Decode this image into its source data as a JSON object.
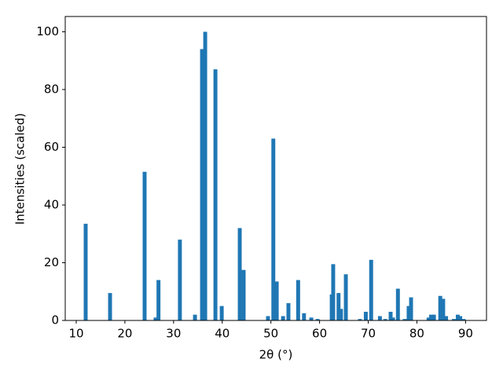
{
  "chart_data": {
    "type": "bar",
    "xlabel": "2θ (°)",
    "ylabel": "Intensities (scaled)",
    "color": "#1f77b4",
    "x": [
      11.94,
      16.95,
      24.05,
      26.3,
      26.9,
      31.3,
      34.4,
      35.85,
      36.5,
      38.6,
      39.9,
      43.6,
      44.4,
      49.4,
      50.5,
      51.2,
      52.5,
      53.6,
      55.6,
      56.8,
      58.3,
      59.6,
      62.5,
      62.8,
      63.9,
      64.4,
      65.4,
      68.3,
      69.5,
      70.6,
      72.4,
      73.5,
      74.6,
      75.1,
      76.1,
      77.5,
      78.3,
      78.8,
      82.4,
      82.9,
      83.5,
      84.8,
      85.4,
      86.0,
      87.6,
      88.4,
      88.9,
      89.6
    ],
    "values": [
      33.5,
      9.5,
      51.5,
      1,
      14,
      28,
      2,
      94,
      100,
      87,
      5,
      32,
      17.5,
      1.5,
      63,
      13.5,
      1.5,
      6,
      14,
      2.5,
      1,
      0.5,
      9,
      19.5,
      9.5,
      4,
      16,
      0.5,
      3,
      21,
      1.5,
      0.5,
      3,
      1,
      11,
      0.5,
      5,
      8,
      1,
      2,
      2,
      8.5,
      7.5,
      1.5,
      0.5,
      2,
      1.5,
      0.5
    ],
    "xlim": [
      7.74,
      94.3
    ],
    "ylim": [
      0,
      105.3
    ],
    "xticks": [
      10,
      20,
      30,
      40,
      50,
      60,
      70,
      80,
      90
    ],
    "yticks": [
      0,
      20,
      40,
      60,
      80,
      100
    ],
    "grid": false
  }
}
